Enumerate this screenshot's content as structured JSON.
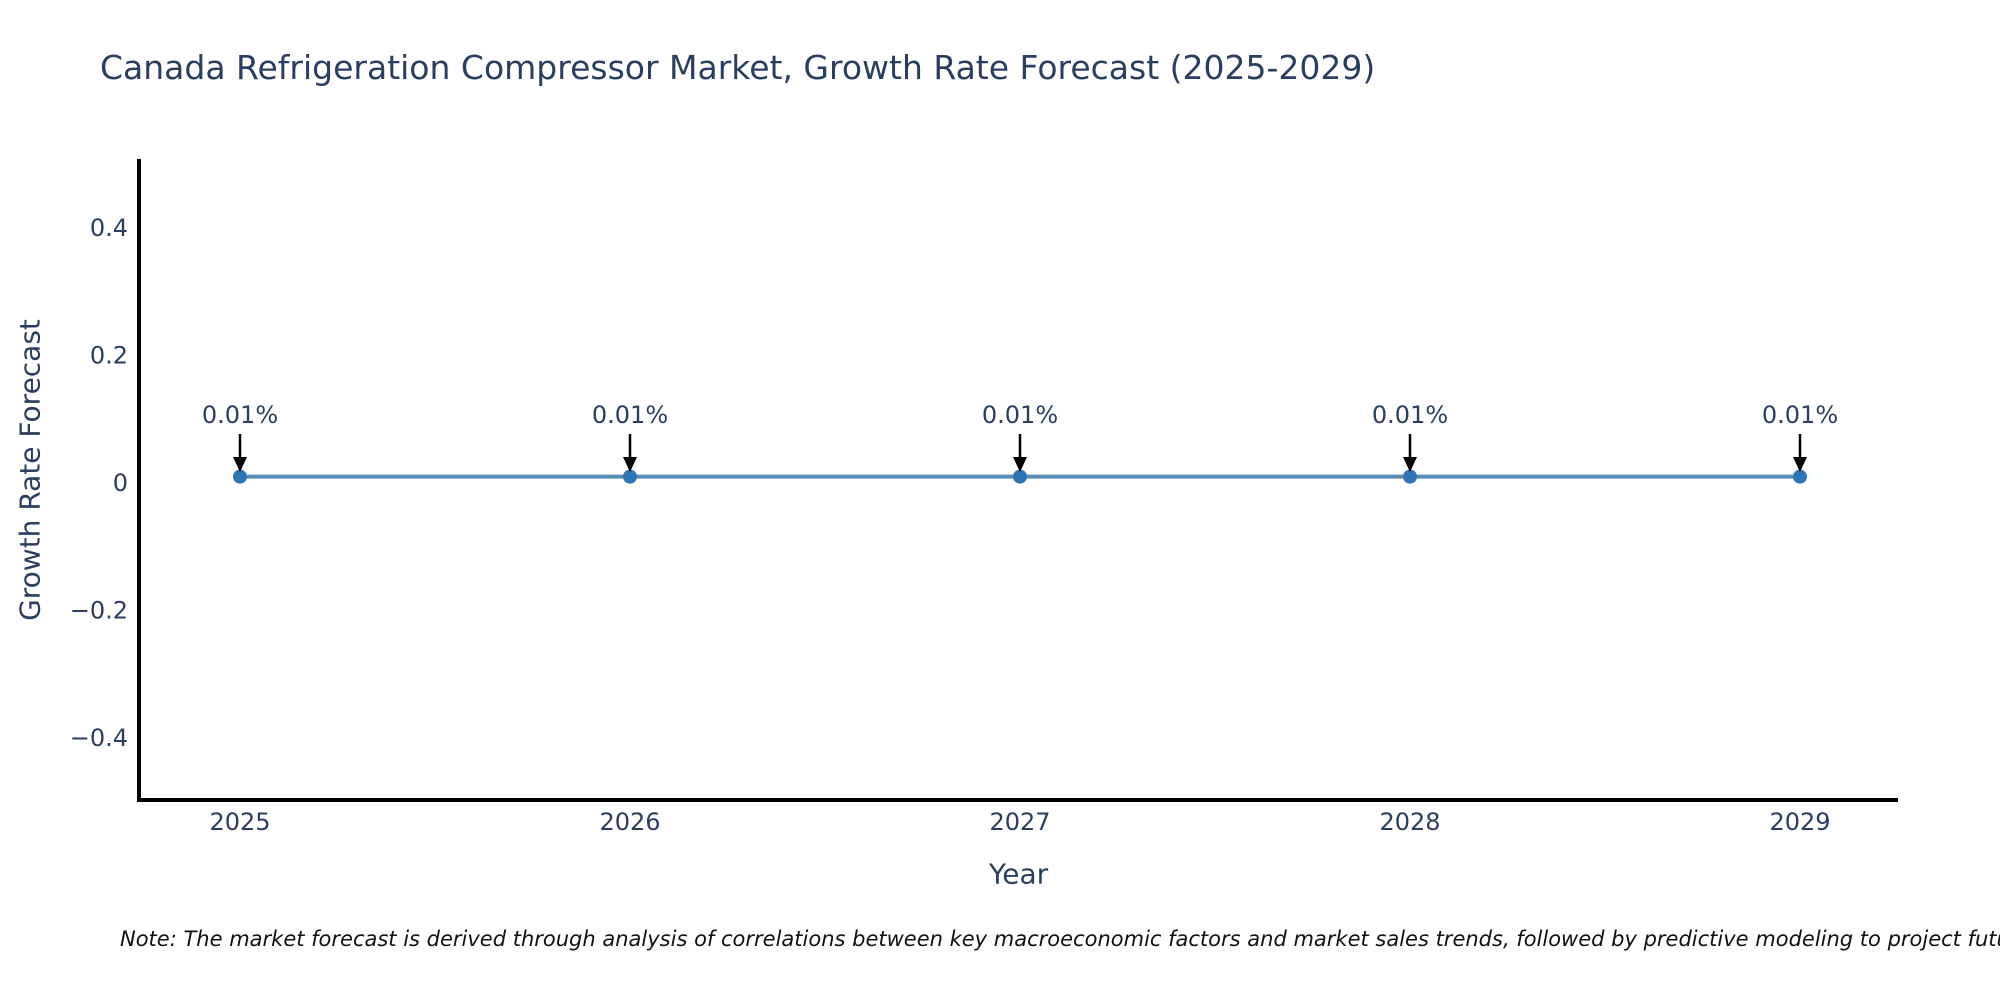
{
  "page": {
    "background": "#ffffff"
  },
  "chart_data": {
    "type": "line",
    "title": "Canada Refrigeration Compressor Market, Growth Rate Forecast (2025-2029)",
    "xlabel": "Year",
    "ylabel": "Growth Rate Forecast",
    "x": [
      2025,
      2026,
      2027,
      2028,
      2029
    ],
    "xtick_labels": [
      "2025",
      "2026",
      "2027",
      "2028",
      "2029"
    ],
    "series": [
      {
        "name": "Growth Rate Forecast",
        "values": [
          0.01,
          0.01,
          0.01,
          0.01,
          0.01
        ]
      }
    ],
    "point_labels": [
      "0.01%",
      "0.01%",
      "0.01%",
      "0.01%",
      "0.01%"
    ],
    "ytick_values": [
      0.4,
      0.2,
      0,
      -0.2,
      -0.4
    ],
    "ytick_labels": [
      "0.4",
      "0.2",
      "0",
      "−0.2",
      "−0.4"
    ],
    "ylim": [
      -0.5,
      0.5
    ],
    "grid": false,
    "legend": "none",
    "colors": {
      "line": "#5b8db4",
      "marker": "#2e74b6",
      "axis": "#000000",
      "text": "#2a3f5f",
      "annotation_arrow": "#000000"
    }
  },
  "note": {
    "text": "Note: The market forecast is derived through analysis of correlations between key macroeconomic factors and market sales trends, followed by predictive modeling to project future sales."
  }
}
